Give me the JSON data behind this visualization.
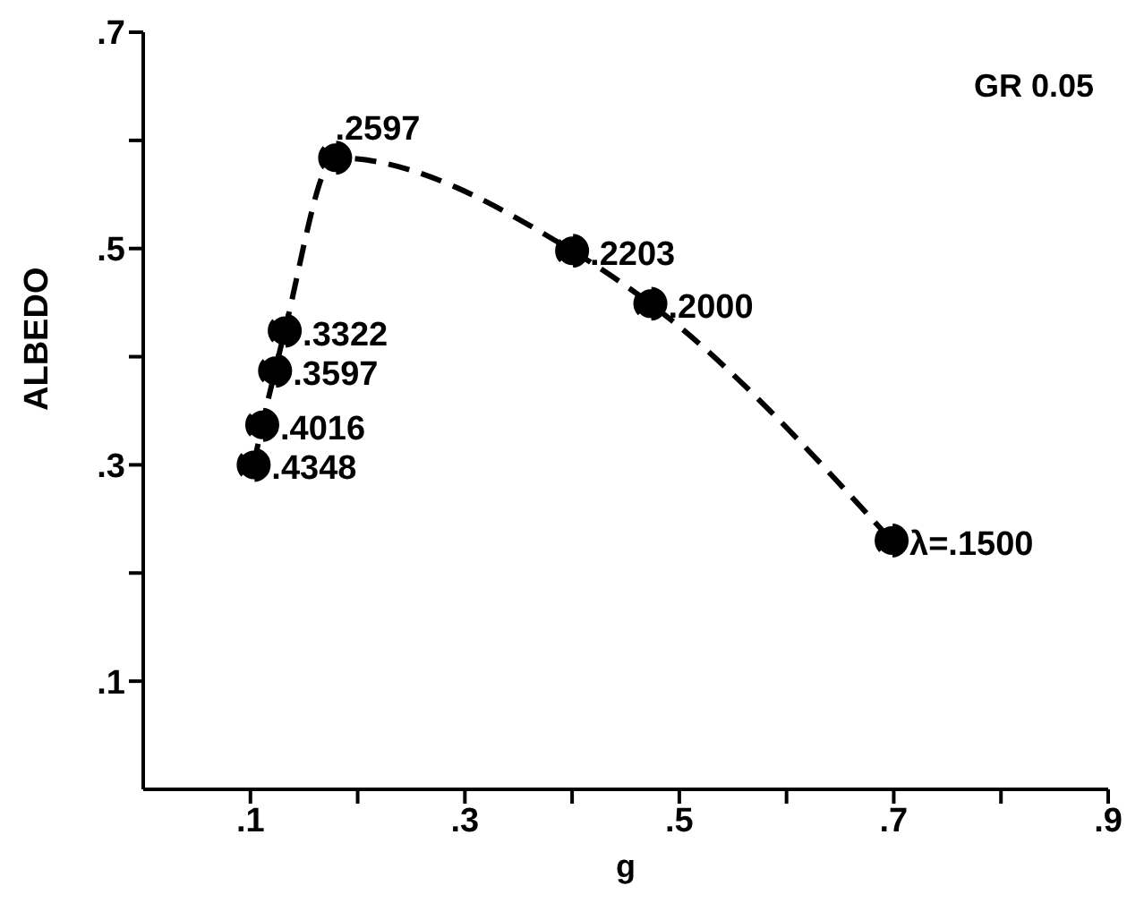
{
  "chart_data": {
    "type": "line",
    "xlabel": "g",
    "ylabel": "ALBEDO",
    "annotations": [
      "GR 0.05",
      {
        "text": ".4348",
        "x": 0.103,
        "y": 0.3
      },
      {
        "text": ".4016",
        "x": 0.111,
        "y": 0.337
      },
      {
        "text": ".3597",
        "x": 0.123,
        "y": 0.387
      },
      {
        "text": ".3322",
        "x": 0.132,
        "y": 0.424
      },
      {
        "text": ".2597",
        "x": 0.179,
        "y": 0.584
      },
      {
        "text": ".2203",
        "x": 0.4,
        "y": 0.498
      },
      {
        "text": ".2000",
        "x": 0.473,
        "y": 0.449
      },
      {
        "text": "λ=.1500",
        "x": 0.698,
        "y": 0.23
      }
    ],
    "x": [
      0.103,
      0.111,
      0.123,
      0.132,
      0.179,
      0.4,
      0.473,
      0.698
    ],
    "series": [
      {
        "color": "#000000",
        "values": [
          0.3,
          0.337,
          0.387,
          0.424,
          0.584,
          0.498,
          0.449,
          0.23
        ]
      }
    ],
    "xlim": [
      0,
      0.9
    ],
    "xticks": [
      {
        "value": 0.1,
        "label": ".1"
      },
      {
        "value": 0.2,
        "label": null
      },
      {
        "value": 0.3,
        "label": ".3"
      },
      {
        "value": 0.4,
        "label": null
      },
      {
        "value": 0.5,
        "label": ".5"
      },
      {
        "value": 0.6,
        "label": null
      },
      {
        "value": 0.7,
        "label": ".7"
      },
      {
        "value": 0.8,
        "label": null
      },
      {
        "value": 0.9,
        "label": ".9"
      }
    ],
    "ylim": [
      0,
      0.7
    ],
    "yticks": [
      {
        "value": 0.1,
        "label": ".1"
      },
      {
        "value": 0.2,
        "label": null
      },
      {
        "value": 0.3,
        "label": ".3"
      },
      {
        "value": 0.4,
        "label": null
      },
      {
        "value": 0.5,
        "label": ".5"
      },
      {
        "value": 0.6,
        "label": null
      },
      {
        "value": 0.7,
        "label": ".7"
      }
    ],
    "grid": false,
    "legend": false,
    "marker": "circle",
    "line_style": "dashed"
  }
}
